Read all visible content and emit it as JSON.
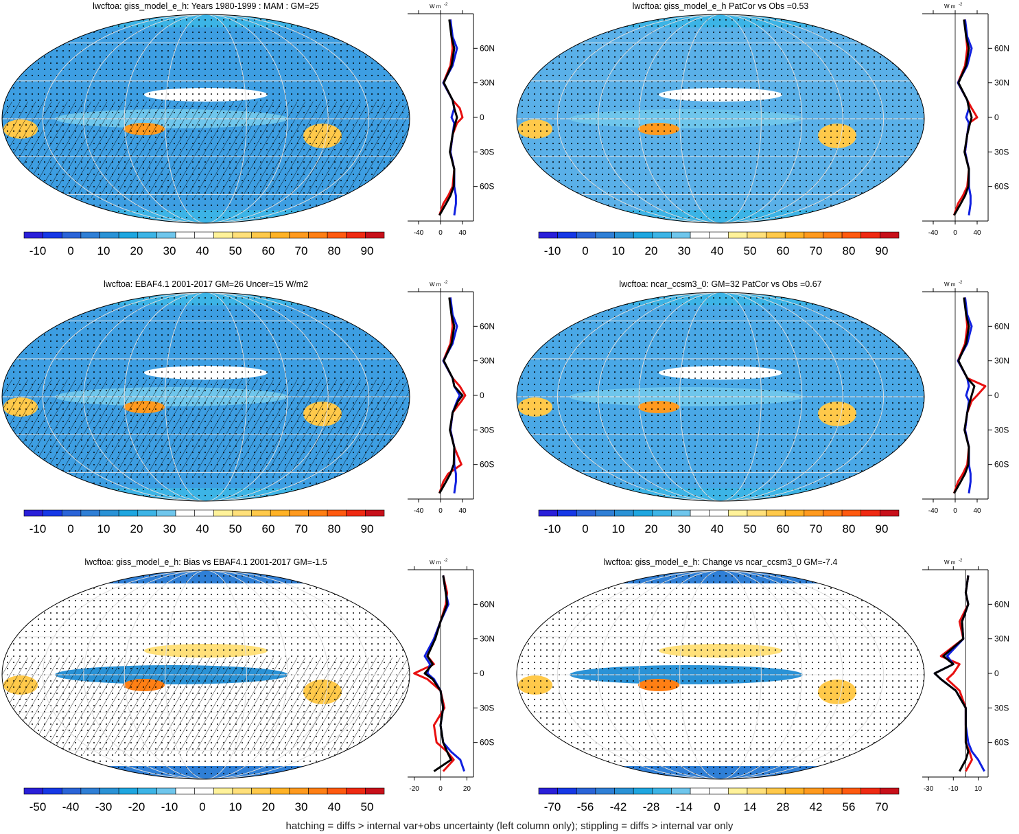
{
  "footnote": "hatching = diffs > internal var+obs uncertainty (left column only); stippling = diffs > internal var only",
  "palettes": {
    "abs": [
      "#2a1fd9",
      "#1638e6",
      "#2a64d8",
      "#2f7fd6",
      "#2a92d6",
      "#1ea6e0",
      "#3cb4e6",
      "#6fc6ec",
      "#ffffff",
      "#ffffff",
      "#fff29a",
      "#ffe07a",
      "#ffc94a",
      "#ffb226",
      "#ff9a1e",
      "#ff7f14",
      "#ff5a10",
      "#ef2a12",
      "#c8101a"
    ],
    "diff": [
      "#2a1fd9",
      "#1638e6",
      "#2a64d8",
      "#2f7fd6",
      "#2a92d6",
      "#1ea6e0",
      "#3cb4e6",
      "#6fc6ec",
      "#ffffff",
      "#ffffff",
      "#fff29a",
      "#ffe07a",
      "#ffc94a",
      "#ffb226",
      "#ff9a1e",
      "#ff7f14",
      "#ff5a10",
      "#ef2a12",
      "#c8101a"
    ]
  },
  "lat_ticks": [
    "60N",
    "30N",
    "0",
    "30S",
    "60S"
  ],
  "units_label": "W m",
  "units_sup": "-2",
  "panels": [
    {
      "title": "lwcftoa: giss_model_e_h: Years 1980-1999 : MAM : GM=25",
      "colorbar_labels": [
        "-10",
        "0",
        "10",
        "20",
        "30",
        "40",
        "50",
        "60",
        "70",
        "80",
        "90"
      ],
      "zonal_x_ticks": [
        "-40",
        "0",
        "40"
      ],
      "zonal_xlim": [
        -60,
        60
      ],
      "palette": "abs",
      "map_base": "#3d9ee2",
      "chart_data": {
        "type": "line",
        "title": "lwcftoa: giss_model_e_h: Years 1980-1999 : MAM : GM=25",
        "ylabel": "latitude",
        "ylim": [
          -90,
          90
        ],
        "series": [
          {
            "color": "#e81010",
            "lat": [
              85,
              70,
              60,
              45,
              30,
              15,
              8,
              0,
              -5,
              -15,
              -30,
              -45,
              -60,
              -68,
              -75,
              -85
            ],
            "values": [
              18,
              20,
              22,
              18,
              5,
              22,
              35,
              40,
              30,
              22,
              18,
              25,
              22,
              14,
              5,
              -2
            ]
          },
          {
            "color": "#1020e0",
            "lat": [
              85,
              70,
              60,
              45,
              30,
              15,
              8,
              0,
              -5,
              -15,
              -30,
              -45,
              -60,
              -68,
              -75,
              -85
            ],
            "values": [
              18,
              22,
              30,
              22,
              5,
              22,
              25,
              20,
              25,
              22,
              18,
              25,
              25,
              28,
              28,
              25
            ]
          },
          {
            "color": "#000000",
            "lat": [
              85,
              70,
              60,
              45,
              30,
              15,
              8,
              0,
              -5,
              -15,
              -30,
              -45,
              -60,
              -68,
              -75,
              -85
            ],
            "values": [
              16,
              20,
              25,
              20,
              6,
              22,
              25,
              30,
              27,
              22,
              17,
              25,
              24,
              18,
              10,
              -2
            ]
          }
        ]
      }
    },
    {
      "title": "lwcftoa: giss_model_e_h PatCor vs Obs =0.53",
      "colorbar_labels": [
        "-10",
        "0",
        "10",
        "20",
        "30",
        "40",
        "50",
        "60",
        "70",
        "80",
        "90"
      ],
      "zonal_x_ticks": [
        "-40",
        "0",
        "40"
      ],
      "zonal_xlim": [
        -60,
        60
      ],
      "palette": "abs",
      "map_base": "#5ab0e8",
      "chart_data": {
        "type": "line",
        "title": "lwcftoa: giss_model_e_h PatCor vs Obs =0.53",
        "ylabel": "latitude",
        "ylim": [
          -90,
          90
        ],
        "series": [
          {
            "color": "#e81010",
            "lat": [
              85,
              70,
              60,
              45,
              30,
              15,
              8,
              0,
              -5,
              -15,
              -30,
              -45,
              -60,
              -68,
              -75,
              -85
            ],
            "values": [
              18,
              20,
              22,
              18,
              5,
              22,
              30,
              40,
              25,
              22,
              18,
              25,
              22,
              14,
              5,
              -2
            ]
          },
          {
            "color": "#1020e0",
            "lat": [
              85,
              70,
              60,
              45,
              30,
              15,
              8,
              0,
              -5,
              -15,
              -30,
              -45,
              -60,
              -68,
              -75,
              -85
            ],
            "values": [
              18,
              22,
              30,
              22,
              5,
              22,
              25,
              20,
              25,
              22,
              18,
              25,
              25,
              28,
              28,
              25
            ]
          },
          {
            "color": "#000000",
            "lat": [
              85,
              70,
              60,
              45,
              30,
              15,
              8,
              0,
              -5,
              -15,
              -30,
              -45,
              -60,
              -68,
              -75,
              -85
            ],
            "values": [
              16,
              20,
              25,
              20,
              6,
              22,
              25,
              30,
              27,
              22,
              17,
              25,
              24,
              18,
              10,
              -2
            ]
          }
        ]
      }
    },
    {
      "title": "lwcftoa: EBAF4.1 2001-2017 GM=26 Uncer=15 W/m2",
      "colorbar_labels": [
        "-10",
        "0",
        "10",
        "20",
        "30",
        "40",
        "50",
        "60",
        "70",
        "80",
        "90"
      ],
      "zonal_x_ticks": [
        "-40",
        "0",
        "40"
      ],
      "zonal_xlim": [
        -60,
        60
      ],
      "palette": "abs",
      "map_base": "#3d9ee2",
      "chart_data": {
        "type": "line",
        "title": "lwcftoa: EBAF4.1 2001-2017 GM=26 Uncer=15 W/m2",
        "ylabel": "latitude",
        "ylim": [
          -90,
          90
        ],
        "series": [
          {
            "color": "#e81010",
            "lat": [
              85,
              70,
              60,
              45,
              30,
              15,
              8,
              0,
              -5,
              -15,
              -30,
              -45,
              -60,
              -68,
              -75,
              -85
            ],
            "values": [
              18,
              20,
              22,
              18,
              5,
              22,
              35,
              45,
              38,
              22,
              18,
              25,
              38,
              14,
              5,
              -2
            ]
          },
          {
            "color": "#1020e0",
            "lat": [
              85,
              70,
              60,
              45,
              30,
              15,
              8,
              0,
              -5,
              -15,
              -30,
              -45,
              -60,
              -68,
              -75,
              -85
            ],
            "values": [
              18,
              22,
              30,
              22,
              5,
              22,
              25,
              35,
              30,
              22,
              18,
              25,
              25,
              28,
              28,
              25
            ]
          },
          {
            "color": "#000000",
            "lat": [
              85,
              70,
              60,
              45,
              30,
              15,
              8,
              0,
              -5,
              -15,
              -30,
              -45,
              -60,
              -68,
              -75,
              -85
            ],
            "values": [
              16,
              20,
              25,
              20,
              6,
              22,
              25,
              40,
              32,
              22,
              17,
              25,
              24,
              18,
              10,
              -2
            ]
          }
        ]
      }
    },
    {
      "title": "lwcftoa: ncar_ccsm3_0: GM=32 PatCor vs Obs =0.67",
      "colorbar_labels": [
        "-10",
        "0",
        "10",
        "20",
        "30",
        "40",
        "50",
        "60",
        "70",
        "80",
        "90"
      ],
      "zonal_x_ticks": [
        "-40",
        "0",
        "40"
      ],
      "zonal_xlim": [
        -60,
        60
      ],
      "palette": "abs",
      "map_base": "#4aa8e6",
      "chart_data": {
        "type": "line",
        "title": "lwcftoa: ncar_ccsm3_0: GM=32 PatCor vs Obs =0.67",
        "ylabel": "latitude",
        "ylim": [
          -90,
          90
        ],
        "series": [
          {
            "color": "#e81010",
            "lat": [
              85,
              70,
              60,
              45,
              30,
              15,
              8,
              0,
              -5,
              -15,
              -30,
              -45,
              -60,
              -68,
              -75,
              -85
            ],
            "values": [
              18,
              20,
              22,
              18,
              5,
              22,
              55,
              40,
              30,
              22,
              18,
              25,
              22,
              14,
              5,
              -2
            ]
          },
          {
            "color": "#1020e0",
            "lat": [
              85,
              70,
              60,
              45,
              30,
              15,
              8,
              0,
              -5,
              -15,
              -30,
              -45,
              -60,
              -68,
              -75,
              -85
            ],
            "values": [
              18,
              22,
              30,
              22,
              5,
              22,
              25,
              20,
              25,
              22,
              18,
              25,
              25,
              28,
              28,
              25
            ]
          },
          {
            "color": "#000000",
            "lat": [
              85,
              70,
              60,
              45,
              30,
              15,
              8,
              0,
              -5,
              -15,
              -30,
              -45,
              -60,
              -68,
              -75,
              -85
            ],
            "values": [
              16,
              20,
              25,
              20,
              6,
              22,
              35,
              30,
              27,
              22,
              17,
              25,
              24,
              18,
              10,
              -2
            ]
          }
        ]
      }
    },
    {
      "title": "lwcftoa: giss_model_e_h: Bias vs EBAF4.1 2001-2017 GM=-1.5",
      "colorbar_labels": [
        "-50",
        "-40",
        "-30",
        "-20",
        "-10",
        "0",
        "10",
        "20",
        "30",
        "40",
        "50"
      ],
      "zonal_x_ticks": [
        "-20",
        "0",
        "20"
      ],
      "zonal_xlim": [
        -25,
        25
      ],
      "palette": "diff",
      "map_base": "#ffffff",
      "chart_data": {
        "type": "line",
        "title": "lwcftoa: giss_model_e_h: Bias vs EBAF4.1 2001-2017 GM=-1.5",
        "ylabel": "latitude",
        "ylim": [
          -90,
          90
        ],
        "series": [
          {
            "color": "#e81010",
            "lat": [
              85,
              70,
              60,
              45,
              30,
              15,
              8,
              0,
              -5,
              -15,
              -30,
              -45,
              -60,
              -68,
              -75,
              -85
            ],
            "values": [
              2,
              5,
              4,
              0,
              -5,
              -10,
              -5,
              -20,
              -10,
              0,
              3,
              -5,
              -3,
              5,
              10,
              2
            ]
          },
          {
            "color": "#1020e0",
            "lat": [
              85,
              70,
              60,
              45,
              30,
              15,
              8,
              0,
              -5,
              -15,
              -30,
              -45,
              -60,
              -68,
              -75,
              -85
            ],
            "values": [
              2,
              4,
              6,
              0,
              -5,
              -12,
              -8,
              -10,
              -5,
              0,
              2,
              0,
              2,
              8,
              15,
              18
            ]
          },
          {
            "color": "#000000",
            "lat": [
              85,
              70,
              60,
              45,
              30,
              15,
              8,
              0,
              -5,
              -15,
              -30,
              -45,
              -60,
              -68,
              -75,
              -85
            ],
            "values": [
              2,
              4,
              5,
              0,
              -4,
              -10,
              -6,
              -12,
              -6,
              0,
              2,
              0,
              2,
              5,
              8,
              -5
            ]
          }
        ]
      }
    },
    {
      "title": "lwcftoa: giss_model_e_h: Change vs ncar_ccsm3_0 GM=-7.4",
      "colorbar_labels": [
        "-70",
        "-56",
        "-42",
        "-28",
        "-14",
        "0",
        "14",
        "28",
        "42",
        "56",
        "70"
      ],
      "zonal_x_ticks": [
        "-30",
        "-10",
        "10"
      ],
      "zonal_xlim": [
        -35,
        18
      ],
      "palette": "diff",
      "map_base": "#ffffff",
      "chart_data": {
        "type": "line",
        "title": "lwcftoa: giss_model_e_h: Change vs ncar_ccsm3_0 GM=-7.4",
        "ylabel": "latitude",
        "ylim": [
          -90,
          90
        ],
        "series": [
          {
            "color": "#e81010",
            "lat": [
              85,
              70,
              60,
              45,
              30,
              15,
              8,
              0,
              -5,
              -15,
              -30,
              -45,
              -60,
              -68,
              -75,
              -85
            ],
            "values": [
              2,
              0,
              2,
              -5,
              -2,
              -20,
              -5,
              -10,
              -15,
              -5,
              0,
              0,
              0,
              3,
              5,
              0
            ]
          },
          {
            "color": "#1020e0",
            "lat": [
              85,
              70,
              60,
              45,
              30,
              15,
              8,
              0,
              -5,
              -15,
              -30,
              -45,
              -60,
              -68,
              -75,
              -85
            ],
            "values": [
              2,
              0,
              2,
              -3,
              -2,
              -15,
              -10,
              -25,
              -20,
              -8,
              0,
              0,
              2,
              5,
              10,
              15
            ]
          },
          {
            "color": "#000000",
            "lat": [
              85,
              70,
              60,
              45,
              30,
              15,
              8,
              0,
              -5,
              -15,
              -30,
              -45,
              -60,
              -68,
              -75,
              -85
            ],
            "values": [
              2,
              0,
              2,
              -3,
              -2,
              -18,
              -10,
              -25,
              -20,
              -8,
              0,
              0,
              0,
              2,
              0,
              -5
            ]
          }
        ]
      }
    }
  ]
}
